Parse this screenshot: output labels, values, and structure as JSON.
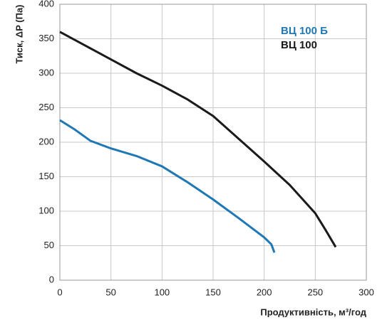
{
  "chart_data": {
    "type": "line",
    "x_label": "Продуктивність, м³/год",
    "y_label": "Тиск, ΔP (Па)",
    "xlim": [
      0,
      300
    ],
    "xticks": [
      0,
      50,
      100,
      150,
      200,
      250,
      300
    ],
    "ylim": [
      0,
      400
    ],
    "yticks": [
      0,
      50,
      100,
      150,
      200,
      250,
      300,
      350,
      400
    ],
    "grid": true,
    "series": [
      {
        "name": "ВЦ 100 Б",
        "color": "#1f78b4",
        "x": [
          0,
          15,
          30,
          50,
          75,
          100,
          125,
          150,
          175,
          200,
          207,
          210
        ],
        "values": [
          232,
          218,
          202,
          191,
          180,
          165,
          142,
          117,
          90,
          62,
          52,
          40
        ]
      },
      {
        "name": "ВЦ 100",
        "color": "#1a1a1a",
        "x": [
          0,
          25,
          50,
          75,
          100,
          125,
          150,
          175,
          200,
          225,
          250,
          260,
          270
        ],
        "values": [
          360,
          340,
          320,
          300,
          282,
          262,
          238,
          205,
          172,
          138,
          97,
          73,
          48
        ]
      }
    ]
  }
}
